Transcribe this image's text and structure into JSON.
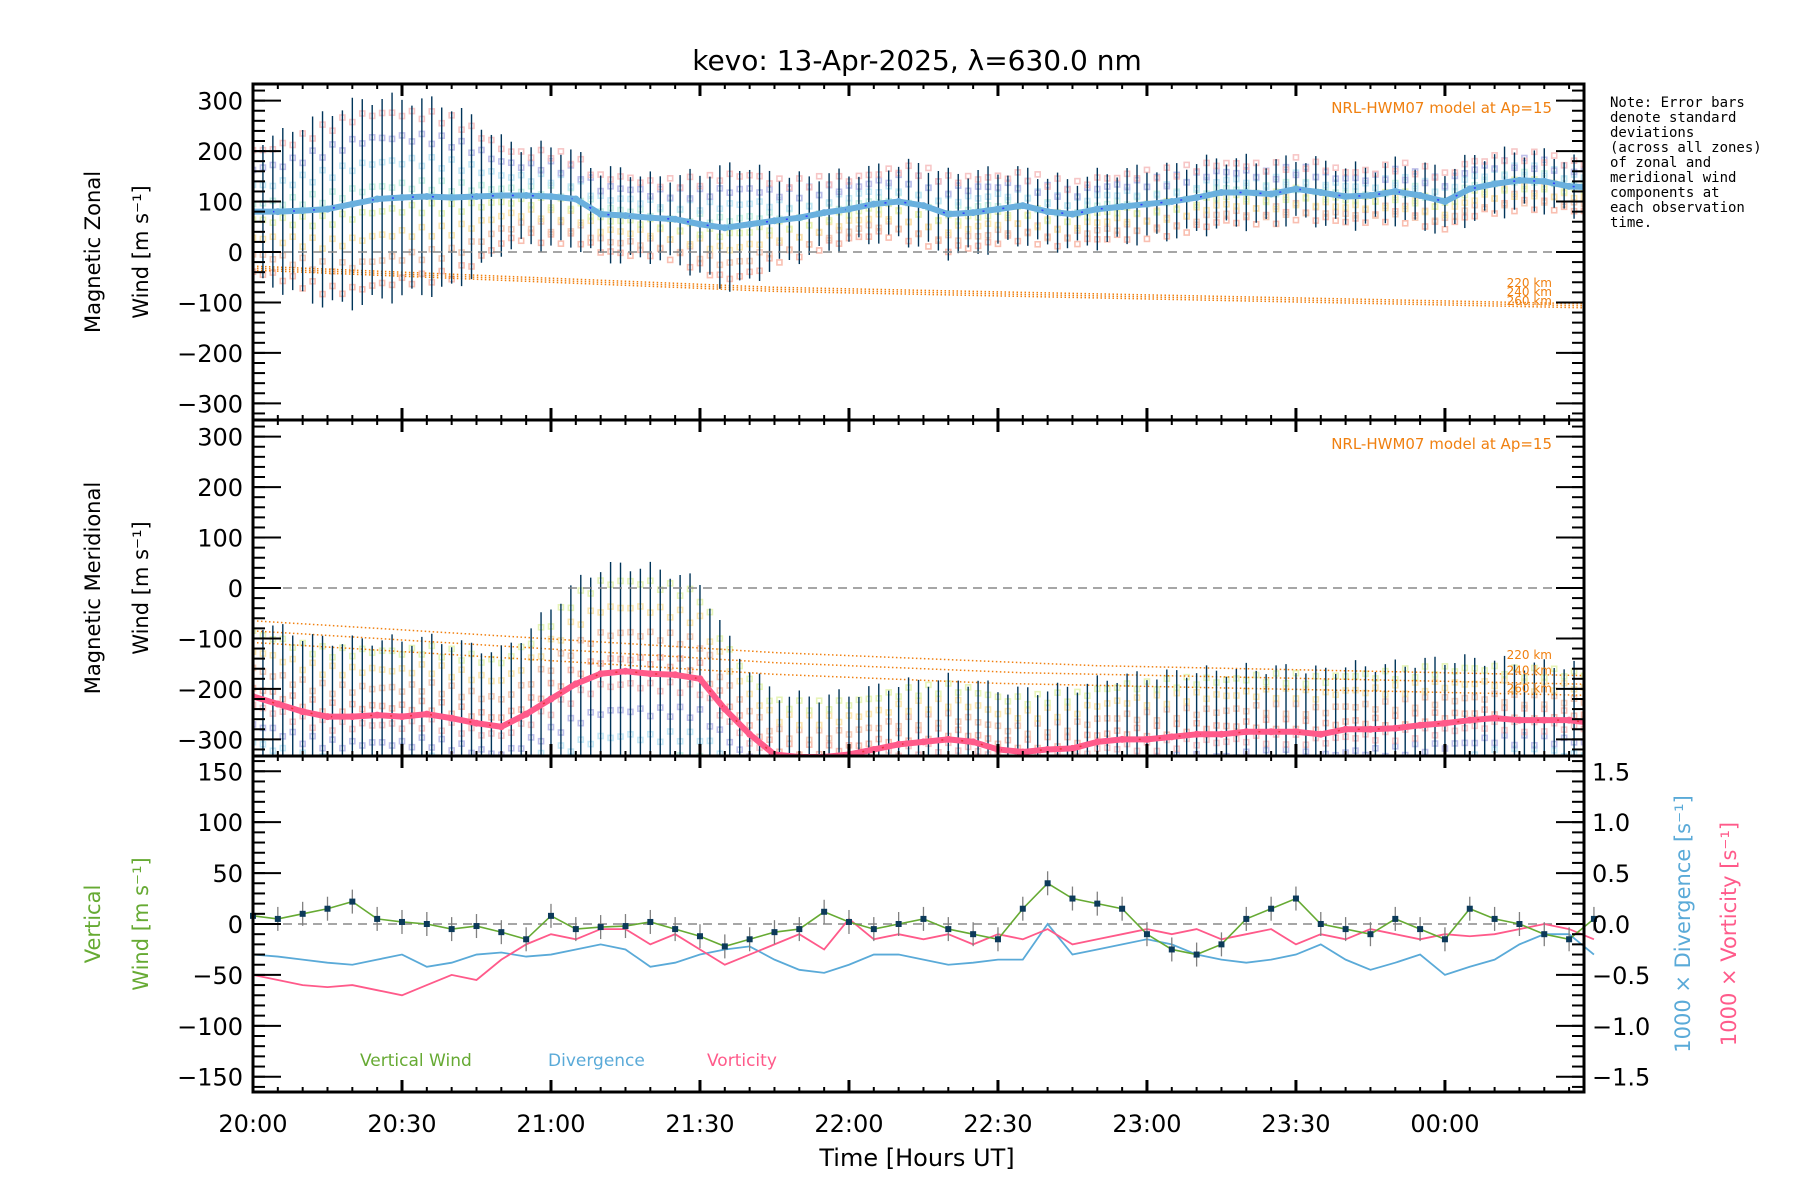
{
  "chart_data": [
    {
      "type": "line",
      "panel": "zonal",
      "title": "kevo: 13-Apr-2025, λ=630.0 nm",
      "ylabel_line1": "Magnetic Zonal",
      "ylabel_line2": "Wind [m s⁻¹]",
      "ylim": [
        -333,
        333
      ],
      "yticks": [
        300,
        200,
        100,
        0,
        -100,
        -200,
        -300
      ],
      "yticklabels": [
        "300",
        "200",
        "100",
        "0",
        "−100",
        "−200",
        "−300"
      ],
      "grid": false,
      "zero_line": "dashed",
      "model_label": "NRL-HWM07 model at Ap=15",
      "altitude_labels": [
        "220 km",
        "240 km",
        "260 km"
      ],
      "x_minutes": [
        0,
        5,
        10,
        15,
        20,
        25,
        30,
        35,
        40,
        45,
        50,
        55,
        60,
        65,
        70,
        75,
        80,
        85,
        90,
        95,
        100,
        105,
        110,
        115,
        120,
        125,
        130,
        135,
        140,
        145,
        150,
        155,
        160,
        165,
        170,
        175,
        180,
        185,
        190,
        195,
        200,
        205,
        210,
        215,
        220,
        225,
        230,
        235,
        240,
        245,
        250,
        255,
        260,
        265,
        270
      ],
      "series": [
        {
          "name": "Mean zonal wind",
          "color": "#6ab0de",
          "values": [
            80,
            80,
            82,
            85,
            95,
            105,
            108,
            110,
            108,
            110,
            112,
            112,
            110,
            105,
            75,
            72,
            68,
            65,
            55,
            48,
            55,
            62,
            68,
            78,
            85,
            95,
            100,
            92,
            75,
            78,
            85,
            92,
            80,
            75,
            85,
            90,
            95,
            100,
            108,
            118,
            118,
            115,
            125,
            118,
            110,
            112,
            120,
            112,
            100,
            125,
            135,
            142,
            140,
            130,
            128
          ]
        },
        {
          "name": "Error bar half-width",
          "color": "#003459",
          "values": [
            140,
            150,
            170,
            190,
            200,
            200,
            195,
            190,
            180,
            150,
            110,
            95,
            100,
            90,
            85,
            90,
            80,
            85,
            100,
            120,
            115,
            90,
            80,
            75,
            70,
            70,
            75,
            80,
            80,
            80,
            75,
            70,
            70,
            65,
            70,
            70,
            70,
            68,
            70,
            68,
            65,
            60,
            62,
            60,
            58,
            55,
            58,
            60,
            60,
            62,
            60,
            58,
            55,
            55,
            55
          ]
        },
        {
          "name": "NRL-HWM07 220 km",
          "color": "#f08010",
          "values": [
            -28,
            -30,
            -32,
            -34,
            -36,
            -38,
            -40,
            -42,
            -44,
            -46,
            -48,
            -50,
            -52,
            -54,
            -56,
            -58,
            -60,
            -62,
            -64,
            -66,
            -68,
            -70,
            -71,
            -72,
            -73,
            -74,
            -75,
            -76,
            -77,
            -78,
            -79,
            -80,
            -81,
            -82,
            -83,
            -84,
            -85,
            -86,
            -87,
            -88,
            -89,
            -90,
            -91,
            -92,
            -93,
            -94,
            -95,
            -96,
            -97,
            -98,
            -99,
            -100,
            -101,
            -102,
            -103
          ]
        },
        {
          "name": "NRL-HWM07 240 km",
          "color": "#f08010",
          "values": [
            -32,
            -34,
            -36,
            -38,
            -40,
            -42,
            -44,
            -46,
            -48,
            -50,
            -52,
            -54,
            -56,
            -58,
            -60,
            -62,
            -64,
            -66,
            -68,
            -70,
            -72,
            -74,
            -75,
            -76,
            -77,
            -78,
            -79,
            -80,
            -81,
            -82,
            -83,
            -84,
            -85,
            -86,
            -87,
            -88,
            -89,
            -90,
            -91,
            -92,
            -93,
            -94,
            -95,
            -96,
            -97,
            -98,
            -99,
            -100,
            -101,
            -102,
            -103,
            -104,
            -105,
            -106,
            -107
          ]
        },
        {
          "name": "NRL-HWM07 260 km",
          "color": "#f08010",
          "values": [
            -36,
            -38,
            -40,
            -42,
            -44,
            -46,
            -48,
            -50,
            -52,
            -54,
            -56,
            -58,
            -60,
            -62,
            -64,
            -66,
            -68,
            -70,
            -72,
            -74,
            -76,
            -78,
            -79,
            -80,
            -81,
            -82,
            -83,
            -84,
            -85,
            -86,
            -87,
            -88,
            -89,
            -90,
            -91,
            -92,
            -93,
            -94,
            -95,
            -96,
            -97,
            -98,
            -99,
            -100,
            -101,
            -102,
            -103,
            -104,
            -105,
            -106,
            -107,
            -108,
            -109,
            -110,
            -111
          ]
        }
      ]
    },
    {
      "type": "line",
      "panel": "meridional",
      "ylabel_line1": "Magnetic Meridional",
      "ylabel_line2": "Wind [m s⁻¹]",
      "ylim": [
        -333,
        333
      ],
      "yticks": [
        300,
        200,
        100,
        0,
        -100,
        -200,
        -300
      ],
      "yticklabels": [
        "300",
        "200",
        "100",
        "0",
        "−100",
        "−200",
        "−300"
      ],
      "grid": false,
      "zero_line": "dashed",
      "model_label": "NRL-HWM07 model at Ap=15",
      "altitude_labels": [
        "220 km",
        "240 km",
        "260 km"
      ],
      "x_minutes": [
        0,
        5,
        10,
        15,
        20,
        25,
        30,
        35,
        40,
        45,
        50,
        55,
        60,
        65,
        70,
        75,
        80,
        85,
        90,
        95,
        100,
        105,
        110,
        115,
        120,
        125,
        130,
        135,
        140,
        145,
        150,
        155,
        160,
        165,
        170,
        175,
        180,
        185,
        190,
        195,
        200,
        205,
        210,
        215,
        220,
        225,
        230,
        235,
        240,
        245,
        250,
        255,
        260,
        265,
        270
      ],
      "series": [
        {
          "name": "Mean meridional wind",
          "color": "#ff5a8a",
          "values": [
            -215,
            -230,
            -245,
            -255,
            -255,
            -252,
            -255,
            -250,
            -258,
            -268,
            -275,
            -250,
            -220,
            -190,
            -170,
            -165,
            -170,
            -172,
            -180,
            -240,
            -290,
            -330,
            -335,
            -335,
            -330,
            -320,
            -310,
            -305,
            -300,
            -305,
            -320,
            -325,
            -320,
            -318,
            -305,
            -300,
            -300,
            -295,
            -290,
            -290,
            -285,
            -285,
            -285,
            -290,
            -280,
            -280,
            -278,
            -272,
            -268,
            -262,
            -258,
            -262,
            -262,
            -262,
            -268
          ]
        },
        {
          "name": "Error bar half-width",
          "color": "#003459",
          "values": [
            150,
            150,
            150,
            150,
            150,
            150,
            150,
            150,
            150,
            150,
            150,
            160,
            180,
            200,
            210,
            210,
            210,
            200,
            190,
            150,
            130,
            120,
            120,
            120,
            120,
            120,
            120,
            120,
            120,
            120,
            120,
            120,
            120,
            120,
            120,
            125,
            125,
            125,
            125,
            125,
            125,
            125,
            125,
            125,
            125,
            125,
            125,
            125,
            125,
            120,
            115,
            110,
            110,
            110,
            110
          ]
        },
        {
          "name": "NRL-HWM07 220 km",
          "color": "#f08010",
          "values": [
            -65,
            -68,
            -71,
            -74,
            -77,
            -80,
            -83,
            -86,
            -89,
            -92,
            -95,
            -98,
            -101,
            -104,
            -107,
            -110,
            -113,
            -116,
            -119,
            -122,
            -125,
            -128,
            -130,
            -132,
            -134,
            -136,
            -138,
            -140,
            -142,
            -144,
            -146,
            -148,
            -150,
            -152,
            -154,
            -155,
            -156,
            -157,
            -158,
            -159,
            -160,
            -161,
            -162,
            -163,
            -164,
            -165,
            -166,
            -167,
            -168,
            -169,
            -170,
            -171,
            -172,
            -173,
            -174
          ]
        },
        {
          "name": "NRL-HWM07 240 km",
          "color": "#f08010",
          "values": [
            -85,
            -88,
            -91,
            -94,
            -97,
            -100,
            -103,
            -106,
            -109,
            -112,
            -115,
            -118,
            -121,
            -124,
            -127,
            -130,
            -133,
            -136,
            -139,
            -142,
            -145,
            -148,
            -150,
            -152,
            -154,
            -156,
            -158,
            -160,
            -162,
            -164,
            -166,
            -168,
            -169,
            -170,
            -171,
            -172,
            -173,
            -174,
            -175,
            -176,
            -177,
            -178,
            -179,
            -180,
            -181,
            -182,
            -183,
            -184,
            -185,
            -186,
            -187,
            -188,
            -189,
            -190,
            -191
          ]
        },
        {
          "name": "NRL-HWM07 260 km",
          "color": "#f08010",
          "values": [
            -108,
            -111,
            -114,
            -117,
            -120,
            -123,
            -126,
            -129,
            -132,
            -135,
            -138,
            -141,
            -144,
            -147,
            -150,
            -153,
            -156,
            -159,
            -162,
            -165,
            -168,
            -171,
            -173,
            -175,
            -177,
            -179,
            -181,
            -183,
            -185,
            -187,
            -189,
            -190,
            -191,
            -192,
            -193,
            -194,
            -195,
            -196,
            -197,
            -198,
            -199,
            -200,
            -201,
            -202,
            -203,
            -204,
            -205,
            -206,
            -207,
            -208,
            -209,
            -210,
            -211,
            -212,
            -213
          ]
        }
      ]
    },
    {
      "type": "line",
      "panel": "vertical",
      "ylabel_line1": "Vertical",
      "ylabel_line2": "Wind [m s⁻¹]",
      "ylim": [
        -165,
        165
      ],
      "yticks": [
        150,
        100,
        50,
        0,
        -50,
        -100,
        -150
      ],
      "yticklabels": [
        "150",
        "100",
        "50",
        "0",
        "−50",
        "−100",
        "−150"
      ],
      "y2label_divergence": "1000 × Divergence [s⁻¹]",
      "y2label_vorticity": "1000 × Vorticity [s⁻¹]",
      "y2lim": [
        -1.65,
        1.65
      ],
      "y2ticks": [
        1.5,
        1.0,
        0.5,
        0.0,
        -0.5,
        -1.0,
        -1.5
      ],
      "y2ticklabels": [
        "1.5",
        "1.0",
        "0.5",
        "0.0",
        "−0.5",
        "−1.0",
        "−1.5"
      ],
      "xlabel": "Time [Hours UT]",
      "xticklabels": [
        "20:00",
        "20:30",
        "21:00",
        "21:30",
        "22:00",
        "22:30",
        "23:00",
        "23:30",
        "00:00"
      ],
      "xlim_minutes": [
        0,
        268
      ],
      "legend": [
        "Vertical Wind",
        "Divergence",
        "Vorticity"
      ],
      "legend_placement": "bottom-left",
      "zero_line": "dashed",
      "x_minutes": [
        0,
        5,
        10,
        15,
        20,
        25,
        30,
        35,
        40,
        45,
        50,
        55,
        60,
        65,
        70,
        75,
        80,
        85,
        90,
        95,
        100,
        105,
        110,
        115,
        120,
        125,
        130,
        135,
        140,
        145,
        150,
        155,
        160,
        165,
        170,
        175,
        180,
        185,
        190,
        195,
        200,
        205,
        210,
        215,
        220,
        225,
        230,
        235,
        240,
        245,
        250,
        255,
        260,
        265,
        270
      ],
      "series": [
        {
          "name": "Vertical Wind",
          "color": "#66aa33",
          "axis": "left",
          "values": [
            8,
            5,
            10,
            15,
            22,
            5,
            2,
            0,
            -5,
            -2,
            -8,
            -15,
            8,
            -5,
            -3,
            -2,
            2,
            -5,
            -12,
            -22,
            -15,
            -8,
            -5,
            12,
            2,
            -5,
            0,
            5,
            -5,
            -10,
            -15,
            15,
            40,
            25,
            20,
            15,
            -10,
            -25,
            -30,
            -20,
            5,
            15,
            25,
            0,
            -5,
            -10,
            5,
            -5,
            -15,
            15,
            5,
            0,
            -10,
            -15,
            5
          ]
        },
        {
          "name": "Divergence",
          "color": "#5aaad8",
          "axis": "right",
          "values": [
            -0.3,
            -0.32,
            -0.35,
            -0.38,
            -0.4,
            -0.35,
            -0.3,
            -0.42,
            -0.38,
            -0.3,
            -0.28,
            -0.32,
            -0.3,
            -0.25,
            -0.2,
            -0.25,
            -0.42,
            -0.38,
            -0.3,
            -0.25,
            -0.22,
            -0.35,
            -0.45,
            -0.48,
            -0.4,
            -0.3,
            -0.3,
            -0.35,
            -0.4,
            -0.38,
            -0.35,
            -0.35,
            0.0,
            -0.3,
            -0.25,
            -0.2,
            -0.15,
            -0.2,
            -0.3,
            -0.35,
            -0.38,
            -0.35,
            -0.3,
            -0.2,
            -0.35,
            -0.45,
            -0.38,
            -0.3,
            -0.5,
            -0.42,
            -0.35,
            -0.2,
            -0.1,
            -0.1,
            -0.3
          ]
        },
        {
          "name": "Vorticity",
          "color": "#ff5a8a",
          "axis": "right",
          "values": [
            -0.5,
            -0.55,
            -0.6,
            -0.62,
            -0.6,
            -0.65,
            -0.7,
            -0.6,
            -0.5,
            -0.55,
            -0.35,
            -0.2,
            -0.1,
            -0.15,
            -0.05,
            -0.05,
            -0.2,
            -0.1,
            -0.25,
            -0.4,
            -0.3,
            -0.2,
            -0.1,
            -0.25,
            0.05,
            -0.15,
            -0.1,
            -0.15,
            -0.1,
            -0.2,
            -0.1,
            -0.15,
            -0.05,
            -0.2,
            -0.15,
            -0.1,
            -0.05,
            -0.1,
            -0.05,
            -0.15,
            -0.1,
            -0.05,
            -0.2,
            -0.1,
            -0.15,
            -0.05,
            -0.1,
            -0.15,
            -0.1,
            -0.12,
            -0.1,
            -0.05,
            0.0,
            -0.05,
            -0.15
          ]
        }
      ]
    }
  ],
  "note": "Note: Error bars\ndenote standard\ndeviations\n(across all zones)\nof zonal and\nmeridional wind\ncomponents at\neach observation\ntime.",
  "colors": {
    "zonal_mean": "#6ab0de",
    "zonal_mean_core": "#2e3aff",
    "meridional_mean": "#ff5a8a",
    "meridional_mean_core": "#e8303a",
    "error_bar": "#003459",
    "model": "#f08010",
    "vertical_wind": "#66aa33",
    "divergence": "#5aaad8",
    "vorticity": "#ff5a8a"
  }
}
